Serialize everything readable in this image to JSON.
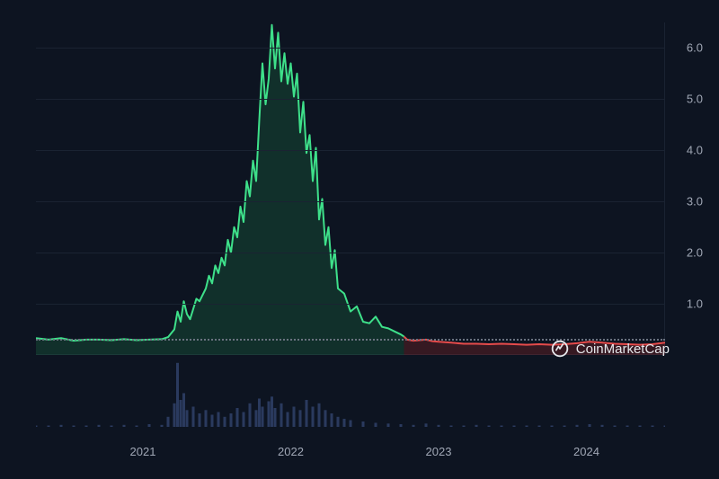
{
  "chart": {
    "type": "line-area",
    "background_color": "#0d1421",
    "grid_color": "#1a2332",
    "text_color": "#a0a7b5",
    "line_color_up": "#3ee08a",
    "line_color_down": "#e64b4b",
    "area_fill_up": "rgba(30,130,76,0.25)",
    "area_fill_down": "rgba(180,40,40,0.25)",
    "dotted_color": "#6a7280",
    "ylim": [
      0,
      6.5
    ],
    "yticks": [
      1.0,
      2.0,
      3.0,
      4.0,
      5.0,
      6.0
    ],
    "ytick_labels": [
      "1.0",
      "2.0",
      "3.0",
      "4.0",
      "5.0",
      "6.0"
    ],
    "reference_line_y": 0.32,
    "x_years": [
      "2021",
      "2022",
      "2023",
      "2024"
    ],
    "x_year_positions": [
      0.17,
      0.405,
      0.64,
      0.875
    ],
    "price_series": [
      [
        0.0,
        0.33
      ],
      [
        0.02,
        0.3
      ],
      [
        0.04,
        0.33
      ],
      [
        0.06,
        0.28
      ],
      [
        0.08,
        0.3
      ],
      [
        0.1,
        0.3
      ],
      [
        0.12,
        0.29
      ],
      [
        0.14,
        0.31
      ],
      [
        0.16,
        0.29
      ],
      [
        0.18,
        0.3
      ],
      [
        0.2,
        0.31
      ],
      [
        0.21,
        0.35
      ],
      [
        0.22,
        0.5
      ],
      [
        0.225,
        0.85
      ],
      [
        0.23,
        0.65
      ],
      [
        0.235,
        1.05
      ],
      [
        0.24,
        0.8
      ],
      [
        0.245,
        0.7
      ],
      [
        0.25,
        0.9
      ],
      [
        0.255,
        1.1
      ],
      [
        0.26,
        1.05
      ],
      [
        0.27,
        1.3
      ],
      [
        0.275,
        1.55
      ],
      [
        0.28,
        1.4
      ],
      [
        0.285,
        1.75
      ],
      [
        0.29,
        1.6
      ],
      [
        0.295,
        1.9
      ],
      [
        0.3,
        1.75
      ],
      [
        0.305,
        2.25
      ],
      [
        0.31,
        2.0
      ],
      [
        0.315,
        2.5
      ],
      [
        0.32,
        2.3
      ],
      [
        0.325,
        2.9
      ],
      [
        0.33,
        2.6
      ],
      [
        0.335,
        3.4
      ],
      [
        0.34,
        3.1
      ],
      [
        0.345,
        3.8
      ],
      [
        0.35,
        3.4
      ],
      [
        0.355,
        4.6
      ],
      [
        0.36,
        5.7
      ],
      [
        0.365,
        4.9
      ],
      [
        0.37,
        5.4
      ],
      [
        0.375,
        6.45
      ],
      [
        0.38,
        5.6
      ],
      [
        0.385,
        6.3
      ],
      [
        0.39,
        5.35
      ],
      [
        0.395,
        5.9
      ],
      [
        0.4,
        5.3
      ],
      [
        0.405,
        5.7
      ],
      [
        0.41,
        5.05
      ],
      [
        0.415,
        5.5
      ],
      [
        0.42,
        4.35
      ],
      [
        0.425,
        4.95
      ],
      [
        0.43,
        3.95
      ],
      [
        0.435,
        4.3
      ],
      [
        0.44,
        3.4
      ],
      [
        0.445,
        4.05
      ],
      [
        0.45,
        2.65
      ],
      [
        0.455,
        3.05
      ],
      [
        0.46,
        2.15
      ],
      [
        0.465,
        2.5
      ],
      [
        0.47,
        1.7
      ],
      [
        0.475,
        2.05
      ],
      [
        0.48,
        1.3
      ],
      [
        0.49,
        1.2
      ],
      [
        0.5,
        0.85
      ],
      [
        0.51,
        0.95
      ],
      [
        0.52,
        0.65
      ],
      [
        0.53,
        0.62
      ],
      [
        0.54,
        0.75
      ],
      [
        0.55,
        0.55
      ],
      [
        0.56,
        0.52
      ],
      [
        0.57,
        0.46
      ],
      [
        0.58,
        0.4
      ],
      [
        0.585,
        0.36
      ]
    ],
    "price_series_down": [
      [
        0.585,
        0.36
      ],
      [
        0.59,
        0.3
      ],
      [
        0.6,
        0.28
      ],
      [
        0.61,
        0.29
      ],
      [
        0.62,
        0.3
      ],
      [
        0.63,
        0.27
      ],
      [
        0.64,
        0.26
      ],
      [
        0.66,
        0.24
      ],
      [
        0.68,
        0.22
      ],
      [
        0.7,
        0.22
      ],
      [
        0.72,
        0.21
      ],
      [
        0.74,
        0.22
      ],
      [
        0.76,
        0.21
      ],
      [
        0.78,
        0.2
      ],
      [
        0.8,
        0.21
      ],
      [
        0.82,
        0.2
      ],
      [
        0.84,
        0.21
      ],
      [
        0.86,
        0.23
      ],
      [
        0.88,
        0.26
      ],
      [
        0.9,
        0.24
      ],
      [
        0.92,
        0.22
      ],
      [
        0.94,
        0.21
      ],
      [
        0.96,
        0.2
      ],
      [
        0.98,
        0.21
      ],
      [
        1.0,
        0.24
      ]
    ],
    "volume_series": [
      [
        0.0,
        0.02
      ],
      [
        0.02,
        0.02
      ],
      [
        0.04,
        0.03
      ],
      [
        0.06,
        0.02
      ],
      [
        0.08,
        0.02
      ],
      [
        0.1,
        0.03
      ],
      [
        0.12,
        0.02
      ],
      [
        0.14,
        0.03
      ],
      [
        0.16,
        0.02
      ],
      [
        0.18,
        0.04
      ],
      [
        0.2,
        0.03
      ],
      [
        0.21,
        0.15
      ],
      [
        0.22,
        0.35
      ],
      [
        0.225,
        0.95
      ],
      [
        0.23,
        0.4
      ],
      [
        0.235,
        0.5
      ],
      [
        0.24,
        0.25
      ],
      [
        0.25,
        0.3
      ],
      [
        0.26,
        0.2
      ],
      [
        0.27,
        0.25
      ],
      [
        0.28,
        0.18
      ],
      [
        0.29,
        0.22
      ],
      [
        0.3,
        0.15
      ],
      [
        0.31,
        0.2
      ],
      [
        0.32,
        0.28
      ],
      [
        0.33,
        0.22
      ],
      [
        0.34,
        0.35
      ],
      [
        0.35,
        0.25
      ],
      [
        0.355,
        0.42
      ],
      [
        0.36,
        0.3
      ],
      [
        0.37,
        0.38
      ],
      [
        0.375,
        0.45
      ],
      [
        0.38,
        0.28
      ],
      [
        0.39,
        0.35
      ],
      [
        0.4,
        0.22
      ],
      [
        0.41,
        0.3
      ],
      [
        0.42,
        0.25
      ],
      [
        0.43,
        0.4
      ],
      [
        0.44,
        0.3
      ],
      [
        0.45,
        0.35
      ],
      [
        0.46,
        0.25
      ],
      [
        0.47,
        0.2
      ],
      [
        0.48,
        0.15
      ],
      [
        0.49,
        0.12
      ],
      [
        0.5,
        0.1
      ],
      [
        0.52,
        0.08
      ],
      [
        0.54,
        0.06
      ],
      [
        0.56,
        0.05
      ],
      [
        0.58,
        0.04
      ],
      [
        0.6,
        0.03
      ],
      [
        0.62,
        0.05
      ],
      [
        0.64,
        0.03
      ],
      [
        0.66,
        0.02
      ],
      [
        0.68,
        0.02
      ],
      [
        0.7,
        0.03
      ],
      [
        0.72,
        0.02
      ],
      [
        0.74,
        0.02
      ],
      [
        0.76,
        0.02
      ],
      [
        0.78,
        0.02
      ],
      [
        0.8,
        0.02
      ],
      [
        0.82,
        0.02
      ],
      [
        0.84,
        0.02
      ],
      [
        0.86,
        0.03
      ],
      [
        0.88,
        0.04
      ],
      [
        0.9,
        0.03
      ],
      [
        0.92,
        0.02
      ],
      [
        0.94,
        0.02
      ],
      [
        0.96,
        0.02
      ],
      [
        0.98,
        0.02
      ],
      [
        1.0,
        0.02
      ]
    ],
    "volume_color": "#2a3a5e"
  },
  "watermark": {
    "text": "CoinMarketCap",
    "icon_color": "#e5e7eb"
  }
}
